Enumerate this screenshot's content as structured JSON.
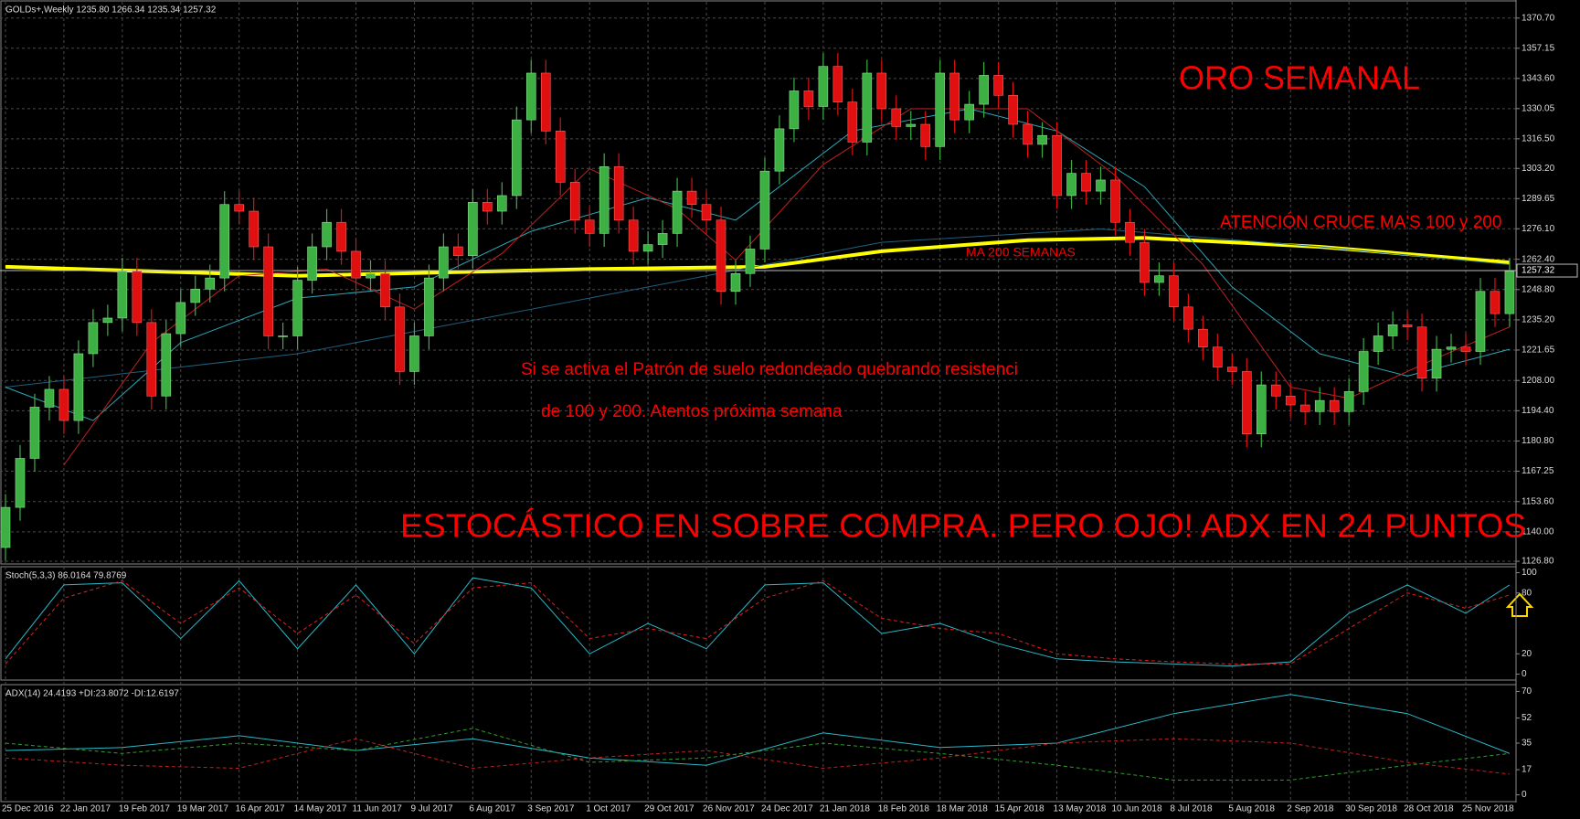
{
  "chart_data": [
    {
      "type": "candlestick",
      "title": "GOLDs+,Weekly  1235.80 1266.34 1235.34 1257.32",
      "annotations": [
        "ORO SEMANAL",
        "ATENCIÓN CRUCE MA'S 100 y 200",
        "MA 200 SEMANAS",
        "Si se activa el Patrón de suelo redondeado quebrando resistenci",
        "de 100 y 200. Atentos próxima semana",
        "ESTOCÁSTICO EN SOBRE COMPRA. PERO OJO! ADX EN 24 PUNTOS"
      ],
      "categories": [
        "25 Dec 2016",
        null,
        null,
        null,
        "22 Jan 2017",
        null,
        null,
        null,
        "19 Feb 2017",
        null,
        null,
        null,
        "19 Mar 2017",
        null,
        null,
        null,
        "16 Apr 2017",
        null,
        null,
        null,
        "14 May 2017",
        null,
        null,
        null,
        "11 Jun 2017",
        null,
        null,
        null,
        "9 Jul 2017",
        null,
        null,
        null,
        "6 Aug 2017",
        null,
        null,
        null,
        "3 Sep 2017",
        null,
        null,
        null,
        "1 Oct 2017",
        null,
        null,
        null,
        "29 Oct 2017",
        null,
        null,
        null,
        "26 Nov 2017",
        null,
        null,
        null,
        "24 Dec 2017",
        null,
        null,
        null,
        "21 Jan 2018",
        null,
        null,
        null,
        "18 Feb 2018",
        null,
        null,
        null,
        "18 Mar 2018",
        null,
        null,
        null,
        "15 Apr 2018",
        null,
        null,
        null,
        "13 May 2018",
        null,
        null,
        null,
        "10 Jun 2018",
        null,
        null,
        null,
        "8 Jul 2018",
        null,
        null,
        null,
        "5 Aug 2018",
        null,
        null,
        null,
        "2 Sep 2018",
        null,
        null,
        null,
        "30 Sep 2018",
        null,
        null,
        null,
        "28 Oct 2018",
        null,
        null,
        null,
        "25 Nov 2018",
        null,
        null,
        null
      ],
      "open": [
        1133,
        1151,
        1173,
        1196,
        1204,
        1190,
        1220,
        1234,
        1236,
        1257,
        1234,
        1201,
        1229,
        1243,
        1249,
        1254,
        1287,
        1284,
        1268,
        1228,
        1228,
        1253,
        1268,
        1279,
        1266,
        1254,
        1256,
        1241,
        1212,
        1228,
        1254,
        1268,
        1264,
        1288,
        1284,
        1291,
        1325,
        1346,
        1320,
        1297,
        1280,
        1274,
        1304,
        1280,
        1266,
        1269,
        1274,
        1293,
        1287,
        1280,
        1248,
        1256,
        1267,
        1302,
        1321,
        1338,
        1331,
        1349,
        1333,
        1315,
        1346,
        1330,
        1322,
        1323,
        1313,
        1346,
        1325,
        1332,
        1345,
        1336,
        1323,
        1314,
        1318,
        1291,
        1301,
        1293,
        1298,
        1279,
        1270,
        1252,
        1255,
        1241,
        1231,
        1223,
        1214,
        1212,
        1184,
        1206,
        1201,
        1197,
        1194,
        1199,
        1194,
        1203,
        1221,
        1228,
        1233,
        1232,
        1209,
        1222,
        1223,
        1221,
        1248,
        1238
      ],
      "high": [
        1157,
        1179,
        1202,
        1210,
        1210,
        1226,
        1240,
        1242,
        1263,
        1263,
        1240,
        1235,
        1249,
        1255,
        1260,
        1293,
        1293,
        1290,
        1274,
        1234,
        1259,
        1274,
        1285,
        1285,
        1272,
        1262,
        1262,
        1247,
        1234,
        1260,
        1274,
        1274,
        1294,
        1294,
        1297,
        1331,
        1352,
        1352,
        1326,
        1303,
        1286,
        1310,
        1310,
        1286,
        1275,
        1280,
        1299,
        1299,
        1293,
        1286,
        1262,
        1273,
        1308,
        1327,
        1344,
        1344,
        1355,
        1355,
        1339,
        1352,
        1352,
        1336,
        1329,
        1329,
        1352,
        1352,
        1338,
        1351,
        1351,
        1342,
        1329,
        1324,
        1324,
        1307,
        1307,
        1304,
        1304,
        1285,
        1276,
        1261,
        1261,
        1247,
        1237,
        1229,
        1220,
        1218,
        1212,
        1212,
        1207,
        1203,
        1205,
        1205,
        1209,
        1227,
        1234,
        1239,
        1239,
        1238,
        1228,
        1229,
        1229,
        1254,
        1254,
        1263
      ],
      "low": [
        1127,
        1145,
        1167,
        1190,
        1184,
        1184,
        1214,
        1228,
        1230,
        1228,
        1195,
        1195,
        1223,
        1237,
        1243,
        1248,
        1278,
        1262,
        1222,
        1222,
        1222,
        1247,
        1262,
        1260,
        1248,
        1248,
        1235,
        1206,
        1206,
        1222,
        1248,
        1258,
        1258,
        1278,
        1278,
        1285,
        1319,
        1314,
        1291,
        1274,
        1268,
        1268,
        1274,
        1260,
        1260,
        1263,
        1268,
        1281,
        1274,
        1242,
        1242,
        1250,
        1261,
        1296,
        1315,
        1325,
        1325,
        1327,
        1309,
        1309,
        1324,
        1316,
        1316,
        1307,
        1307,
        1319,
        1319,
        1326,
        1330,
        1317,
        1308,
        1308,
        1285,
        1285,
        1287,
        1287,
        1273,
        1264,
        1246,
        1246,
        1235,
        1225,
        1217,
        1208,
        1206,
        1178,
        1178,
        1195,
        1191,
        1188,
        1188,
        1188,
        1188,
        1197,
        1215,
        1222,
        1226,
        1203,
        1203,
        1216,
        1215,
        1215,
        1232,
        1232
      ],
      "close": [
        1151,
        1173,
        1196,
        1204,
        1190,
        1220,
        1234,
        1236,
        1257,
        1234,
        1201,
        1229,
        1243,
        1249,
        1254,
        1287,
        1284,
        1268,
        1228,
        1228,
        1253,
        1268,
        1279,
        1266,
        1254,
        1256,
        1241,
        1212,
        1228,
        1254,
        1268,
        1264,
        1288,
        1284,
        1291,
        1325,
        1346,
        1320,
        1297,
        1280,
        1274,
        1304,
        1280,
        1266,
        1269,
        1274,
        1293,
        1287,
        1280,
        1248,
        1256,
        1267,
        1302,
        1321,
        1338,
        1331,
        1349,
        1333,
        1315,
        1346,
        1330,
        1322,
        1323,
        1313,
        1346,
        1325,
        1332,
        1345,
        1336,
        1323,
        1314,
        1318,
        1291,
        1301,
        1293,
        1298,
        1279,
        1270,
        1252,
        1255,
        1241,
        1231,
        1223,
        1214,
        1212,
        1184,
        1206,
        1201,
        1197,
        1194,
        1199,
        1194,
        1203,
        1221,
        1228,
        1233,
        1232,
        1209,
        1222,
        1223,
        1221,
        1248,
        1238,
        1257
      ],
      "up_color": "#3cb043",
      "down_color": "#e01010",
      "series": [
        {
          "color": "#ffff00",
          "width": 4,
          "x": [
            0,
            20,
            40,
            52,
            60,
            70,
            78,
            90,
            103
          ],
          "values": [
            1259,
            1255,
            1258,
            1259,
            1266,
            1271,
            1272,
            1268,
            1261
          ]
        },
        {
          "color": "#1f5f7f",
          "width": 1,
          "x": [
            0,
            20,
            40,
            60,
            75,
            90,
            103
          ],
          "values": [
            1205,
            1220,
            1245,
            1270,
            1276,
            1268,
            1260
          ]
        },
        {
          "color": "#2aa8b8",
          "width": 1,
          "x": [
            0,
            6,
            12,
            20,
            28,
            36,
            44,
            50,
            58,
            66,
            72,
            78,
            84,
            90,
            96,
            103
          ],
          "values": [
            1205,
            1190,
            1225,
            1245,
            1250,
            1275,
            1290,
            1280,
            1320,
            1330,
            1320,
            1295,
            1250,
            1220,
            1210,
            1222
          ]
        },
        {
          "color": "#c02020",
          "width": 1,
          "x": [
            4,
            10,
            16,
            22,
            28,
            34,
            40,
            46,
            50,
            56,
            62,
            70,
            76,
            82,
            88,
            92,
            98,
            103
          ],
          "values": [
            1170,
            1225,
            1255,
            1258,
            1240,
            1265,
            1303,
            1285,
            1262,
            1305,
            1330,
            1330,
            1300,
            1260,
            1205,
            1200,
            1218,
            1232
          ]
        }
      ],
      "current_price": 1257.32,
      "ylim": [
        1126,
        1378
      ],
      "yticks": [
        {
          "value": 1370.7,
          "label": "1370.70"
        },
        {
          "value": 1357.15,
          "label": "1357.15"
        },
        {
          "value": 1343.6,
          "label": "1343.60"
        },
        {
          "value": 1330.05,
          "label": "1330.05"
        },
        {
          "value": 1316.5,
          "label": "1316.50"
        },
        {
          "value": 1303.2,
          "label": "1303.20"
        },
        {
          "value": 1289.65,
          "label": "1289.65"
        },
        {
          "value": 1276.1,
          "label": "1276.10"
        },
        {
          "value": 1262.4,
          "label": "1262.40"
        },
        {
          "value": 1248.8,
          "label": "1248.80"
        },
        {
          "value": 1235.2,
          "label": "1235.20"
        },
        {
          "value": 1221.65,
          "label": "1221.65"
        },
        {
          "value": 1208,
          "label": "1208.00"
        },
        {
          "value": 1194.4,
          "label": "1194.40"
        },
        {
          "value": 1180.8,
          "label": "1180.80"
        },
        {
          "value": 1167.25,
          "label": "1167.25"
        },
        {
          "value": 1153.6,
          "label": "1153.60"
        },
        {
          "value": 1140,
          "label": "1140.00"
        },
        {
          "value": 1126.8,
          "label": "1126.80"
        }
      ],
      "grid": true
    },
    {
      "type": "line",
      "title": "Stoch(5,3,3) 86.0164 79.8769",
      "series": [
        {
          "color": "#2ab8c8",
          "dash": false,
          "x": [
            0,
            4,
            8,
            12,
            16,
            20,
            24,
            28,
            32,
            36,
            40,
            44,
            48,
            52,
            56,
            60,
            64,
            68,
            72,
            76,
            80,
            84,
            88,
            92,
            96,
            100,
            103
          ],
          "values": [
            15,
            88,
            90,
            35,
            92,
            25,
            88,
            20,
            95,
            85,
            20,
            50,
            25,
            88,
            90,
            40,
            50,
            30,
            15,
            12,
            10,
            8,
            12,
            60,
            88,
            60,
            88
          ]
        },
        {
          "color": "#e02020",
          "dash": true,
          "x": [
            0,
            4,
            8,
            12,
            16,
            20,
            24,
            28,
            32,
            36,
            40,
            44,
            48,
            52,
            56,
            60,
            64,
            68,
            72,
            76,
            80,
            84,
            88,
            92,
            96,
            100,
            103
          ],
          "values": [
            10,
            75,
            92,
            50,
            85,
            40,
            78,
            30,
            85,
            90,
            35,
            45,
            35,
            75,
            92,
            55,
            45,
            40,
            20,
            15,
            12,
            10,
            10,
            45,
            80,
            65,
            78
          ]
        }
      ],
      "ylim": [
        -5,
        105
      ],
      "yticks": [
        100,
        80,
        20,
        0
      ]
    },
    {
      "type": "line",
      "title": "ADX(14) 24.4193 +DI:23.8072 -DI:12.6197",
      "series": [
        {
          "color": "#2ab8c8",
          "dash": false,
          "x": [
            0,
            8,
            16,
            24,
            32,
            40,
            48,
            56,
            64,
            72,
            80,
            88,
            96,
            103
          ],
          "values": [
            30,
            32,
            40,
            30,
            38,
            25,
            20,
            42,
            32,
            35,
            55,
            68,
            55,
            28
          ]
        },
        {
          "color": "#2aa02a",
          "dash": true,
          "x": [
            0,
            8,
            16,
            24,
            32,
            40,
            48,
            56,
            64,
            72,
            80,
            88,
            96,
            103
          ],
          "values": [
            35,
            28,
            35,
            30,
            45,
            22,
            25,
            35,
            28,
            20,
            10,
            10,
            20,
            28
          ]
        },
        {
          "color": "#c02020",
          "dash": true,
          "x": [
            0,
            8,
            16,
            24,
            32,
            40,
            48,
            56,
            64,
            72,
            80,
            88,
            96,
            103
          ],
          "values": [
            25,
            20,
            18,
            38,
            18,
            25,
            30,
            18,
            25,
            35,
            38,
            35,
            22,
            14
          ]
        }
      ],
      "ylim": [
        -4,
        74
      ],
      "yticks": [
        70,
        52,
        35,
        17,
        0
      ]
    }
  ]
}
